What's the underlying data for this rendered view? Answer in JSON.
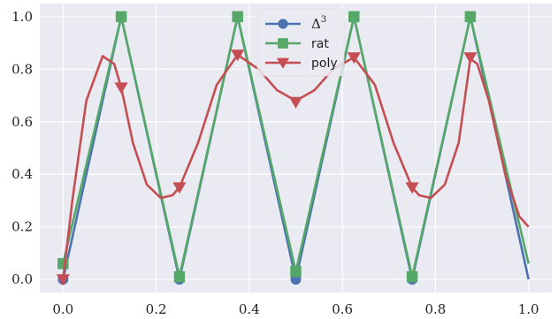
{
  "chart_data": {
    "type": "line",
    "xlim": [
      -0.05,
      1.05
    ],
    "ylim": [
      -0.05,
      1.05
    ],
    "xticks": [
      0.0,
      0.2,
      0.4,
      0.6,
      0.8,
      1.0
    ],
    "xtick_labels": [
      "0.0",
      "0.2",
      "0.4",
      "0.6",
      "0.8",
      "1.0"
    ],
    "yticks": [
      0.0,
      0.2,
      0.4,
      0.6,
      0.8,
      1.0
    ],
    "ytick_labels": [
      "0.0",
      "0.2",
      "0.4",
      "0.6",
      "0.8",
      "1.0"
    ],
    "grid": true,
    "legend_position": "top-center",
    "colors": {
      "background": "#eaeaf2",
      "grid": "#ffffff"
    },
    "series": [
      {
        "name": "Δ³",
        "label_main": "Δ",
        "label_sup": "3",
        "color": "#4c72b0",
        "marker": "circle",
        "curve": [
          [
            0.0,
            0.0
          ],
          [
            0.125,
            1.0
          ],
          [
            0.25,
            0.0
          ],
          [
            0.375,
            1.0
          ],
          [
            0.5,
            0.0
          ],
          [
            0.625,
            1.0
          ],
          [
            0.75,
            0.0
          ],
          [
            0.875,
            1.0
          ],
          [
            1.0,
            0.0
          ]
        ],
        "markers": [
          [
            0.0,
            0.0
          ],
          [
            0.125,
            1.0
          ],
          [
            0.25,
            0.0
          ],
          [
            0.375,
            1.0
          ],
          [
            0.5,
            0.0
          ],
          [
            0.625,
            1.0
          ],
          [
            0.75,
            0.0
          ],
          [
            0.875,
            1.0
          ]
        ]
      },
      {
        "name": "rat",
        "label_main": "rat",
        "label_sup": "",
        "color": "#55a868",
        "marker": "square",
        "curve": [
          [
            0.0,
            0.06
          ],
          [
            0.125,
            1.0
          ],
          [
            0.25,
            0.01
          ],
          [
            0.375,
            1.0
          ],
          [
            0.5,
            0.03
          ],
          [
            0.625,
            1.0
          ],
          [
            0.75,
            0.01
          ],
          [
            0.875,
            1.0
          ],
          [
            1.0,
            0.06
          ]
        ],
        "markers": [
          [
            0.0,
            0.06
          ],
          [
            0.125,
            1.0
          ],
          [
            0.25,
            0.01
          ],
          [
            0.375,
            1.0
          ],
          [
            0.5,
            0.03
          ],
          [
            0.625,
            1.0
          ],
          [
            0.75,
            0.01
          ],
          [
            0.875,
            1.0
          ]
        ]
      },
      {
        "name": "poly",
        "label_main": "poly",
        "label_sup": "",
        "color": "#c44e52",
        "marker": "triangle-down",
        "curve": [
          [
            0.0,
            0.0
          ],
          [
            0.02,
            0.3
          ],
          [
            0.05,
            0.68
          ],
          [
            0.085,
            0.85
          ],
          [
            0.11,
            0.82
          ],
          [
            0.125,
            0.73
          ],
          [
            0.15,
            0.52
          ],
          [
            0.18,
            0.36
          ],
          [
            0.21,
            0.31
          ],
          [
            0.235,
            0.32
          ],
          [
            0.25,
            0.35
          ],
          [
            0.29,
            0.52
          ],
          [
            0.33,
            0.74
          ],
          [
            0.375,
            0.855
          ],
          [
            0.42,
            0.8
          ],
          [
            0.46,
            0.72
          ],
          [
            0.5,
            0.68
          ],
          [
            0.54,
            0.72
          ],
          [
            0.58,
            0.8
          ],
          [
            0.625,
            0.845
          ],
          [
            0.67,
            0.74
          ],
          [
            0.71,
            0.52
          ],
          [
            0.75,
            0.35
          ],
          [
            0.765,
            0.32
          ],
          [
            0.79,
            0.31
          ],
          [
            0.82,
            0.36
          ],
          [
            0.85,
            0.52
          ],
          [
            0.875,
            0.84
          ],
          [
            0.89,
            0.82
          ],
          [
            0.915,
            0.68
          ],
          [
            0.95,
            0.4
          ],
          [
            0.98,
            0.24
          ],
          [
            1.0,
            0.2
          ]
        ],
        "markers": [
          [
            0.0,
            0.0
          ],
          [
            0.125,
            0.73
          ],
          [
            0.25,
            0.35
          ],
          [
            0.375,
            0.855
          ],
          [
            0.5,
            0.675
          ],
          [
            0.625,
            0.845
          ],
          [
            0.75,
            0.35
          ],
          [
            0.875,
            0.845
          ]
        ]
      }
    ]
  }
}
